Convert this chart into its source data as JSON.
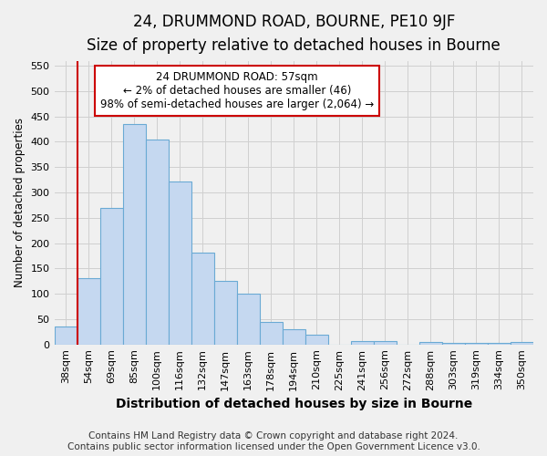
{
  "title1": "24, DRUMMOND ROAD, BOURNE, PE10 9JF",
  "title2": "Size of property relative to detached houses in Bourne",
  "xlabel": "Distribution of detached houses by size in Bourne",
  "ylabel": "Number of detached properties",
  "categories": [
    "38sqm",
    "54sqm",
    "69sqm",
    "85sqm",
    "100sqm",
    "116sqm",
    "132sqm",
    "147sqm",
    "163sqm",
    "178sqm",
    "194sqm",
    "210sqm",
    "225sqm",
    "241sqm",
    "256sqm",
    "272sqm",
    "288sqm",
    "303sqm",
    "319sqm",
    "334sqm",
    "350sqm"
  ],
  "values": [
    35,
    130,
    270,
    435,
    405,
    322,
    182,
    125,
    100,
    45,
    30,
    20,
    0,
    7,
    7,
    0,
    4,
    3,
    3,
    3,
    5
  ],
  "bar_color": "#c5d8f0",
  "bar_edge_color": "#6aaad4",
  "highlight_box_line1": "24 DRUMMOND ROAD: 57sqm",
  "highlight_box_line2": "← 2% of detached houses are smaller (46)",
  "highlight_box_line3": "98% of semi-detached houses are larger (2,064) →",
  "highlight_box_edgecolor": "#cc0000",
  "highlight_line_color": "#cc0000",
  "ylim_min": 0,
  "ylim_max": 560,
  "yticks": [
    0,
    50,
    100,
    150,
    200,
    250,
    300,
    350,
    400,
    450,
    500,
    550
  ],
  "footer1": "Contains HM Land Registry data © Crown copyright and database right 2024.",
  "footer2": "Contains public sector information licensed under the Open Government Licence v3.0.",
  "bg_color": "#f0f0f0",
  "title1_fontsize": 12,
  "title2_fontsize": 10,
  "xlabel_fontsize": 10,
  "ylabel_fontsize": 8.5,
  "tick_fontsize": 8,
  "footer_fontsize": 7.5,
  "annotation_fontsize": 8.5
}
